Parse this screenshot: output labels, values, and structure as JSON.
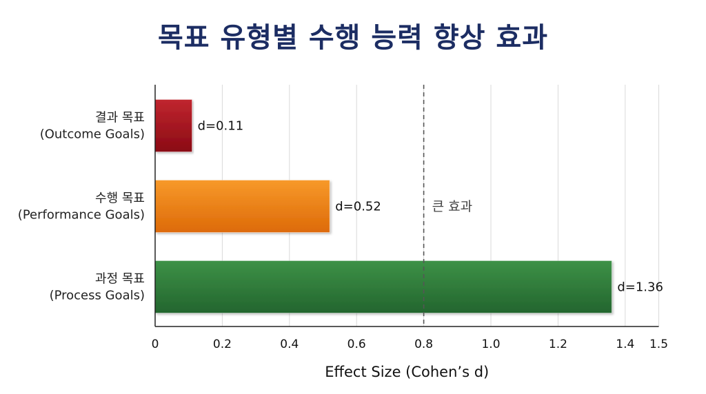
{
  "title": "목표 유형별 수행 능력 향상 효과",
  "chart_data": {
    "type": "bar",
    "orientation": "horizontal",
    "title": "목표 유형별 수행 능력 향상 효과",
    "xlabel": "Effect Size (Cohen’s d)",
    "ylabel": "",
    "xlim": [
      0,
      1.5
    ],
    "xticks": [
      0,
      0.2,
      0.4,
      0.6,
      0.8,
      1.0,
      1.2,
      1.4,
      1.5
    ],
    "xtick_labels": [
      "0",
      "0.2",
      "0.4",
      "0.6",
      "0.8",
      "1.0",
      "1.2",
      "1.4",
      "1.5"
    ],
    "grid": true,
    "categories": [
      {
        "line1": "결과 목표",
        "line2": "(Outcome Goals)"
      },
      {
        "line1": "수행 목표",
        "line2": "(Performance Goals)"
      },
      {
        "line1": "과정 목표",
        "line2": "(Process Goals)"
      }
    ],
    "values": [
      0.11,
      0.52,
      1.36
    ],
    "value_labels": [
      "d=0.11",
      "d=0.52",
      "d=1.36"
    ],
    "colors": [
      "#a5141f",
      "#ee7d16",
      "#2e7d3c"
    ],
    "reference_line": {
      "x": 0.8,
      "label": "큰 효과",
      "style": "dashed"
    }
  }
}
